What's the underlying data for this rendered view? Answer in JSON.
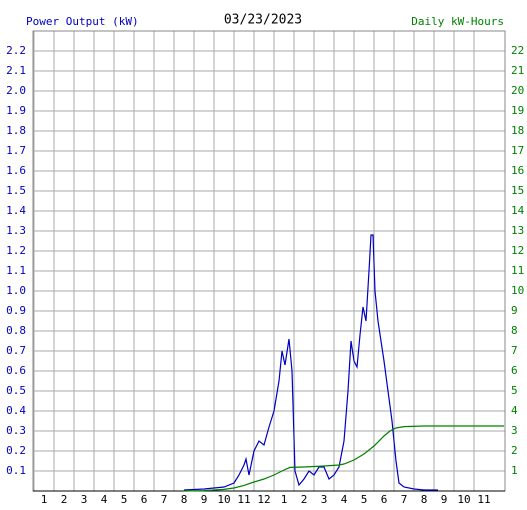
{
  "chart_data": {
    "type": "line",
    "title": "03/23/2023",
    "y_label": "Power Output (kW)",
    "y2_label": "Daily kW-Hours",
    "xlim": [
      0.45,
      24.05
    ],
    "xticks": [
      1,
      2,
      3,
      4,
      5,
      6,
      7,
      8,
      9,
      10,
      11,
      12,
      {
        "value": 13,
        "label": "1"
      },
      {
        "value": 14,
        "label": "2"
      },
      {
        "value": 15,
        "label": "3"
      },
      {
        "value": 16,
        "label": "4"
      },
      {
        "value": 17,
        "label": "5"
      },
      {
        "value": 18,
        "label": "6"
      },
      {
        "value": 19,
        "label": "7"
      },
      {
        "value": 20,
        "label": "8"
      },
      {
        "value": 21,
        "label": "9"
      },
      {
        "value": 22,
        "label": "10"
      },
      {
        "value": 23,
        "label": "11"
      }
    ],
    "ylim": [
      0,
      2.3
    ],
    "yticks": [
      0.1,
      0.2,
      0.3,
      0.4,
      0.5,
      0.6,
      0.7,
      0.8,
      0.9,
      {
        "value": 1,
        "label": "1.0"
      },
      1.1,
      1.2,
      1.3,
      1.4,
      1.5,
      1.6,
      1.7,
      1.8,
      1.9,
      {
        "value": 2,
        "label": "2.0"
      },
      2.1,
      2.2
    ],
    "y2lim": [
      0,
      23
    ],
    "y2ticks": [
      1,
      2,
      3,
      4,
      5,
      6,
      7,
      8,
      9,
      10,
      11,
      12,
      13,
      14,
      15,
      16,
      17,
      18,
      19,
      20,
      21,
      22
    ],
    "grid": true,
    "series": [
      {
        "name": "Power Output (kW)",
        "color": "#0000c0",
        "x": [
          8,
          9,
          10,
          10.5,
          10.75,
          11,
          11.1,
          11.25,
          11.5,
          11.75,
          12,
          12.25,
          12.5,
          12.75,
          12.9,
          13.05,
          13.25,
          13.4,
          13.55,
          13.75,
          14,
          14.25,
          14.5,
          14.75,
          15,
          15.25,
          15.5,
          15.75,
          16,
          16.2,
          16.35,
          16.5,
          16.65,
          16.8,
          16.95,
          17.1,
          17.25,
          17.35,
          17.45,
          17.55,
          17.7,
          17.85,
          18,
          18.2,
          18.4,
          18.6,
          18.75,
          19,
          19.5,
          20,
          20.7
        ],
        "values": [
          0.005,
          0.01,
          0.02,
          0.04,
          0.08,
          0.13,
          0.16,
          0.08,
          0.2,
          0.25,
          0.23,
          0.32,
          0.4,
          0.55,
          0.7,
          0.63,
          0.76,
          0.6,
          0.1,
          0.03,
          0.06,
          0.1,
          0.08,
          0.12,
          0.12,
          0.06,
          0.08,
          0.12,
          0.25,
          0.5,
          0.75,
          0.65,
          0.62,
          0.78,
          0.92,
          0.85,
          1.1,
          1.28,
          1.28,
          1.0,
          0.85,
          0.75,
          0.65,
          0.5,
          0.35,
          0.15,
          0.04,
          0.02,
          0.01,
          0.005,
          0.005
        ]
      },
      {
        "name": "Daily kW-Hours",
        "color": "#008000",
        "axis": "y2",
        "x": [
          8,
          9,
          10,
          10.5,
          11,
          11.5,
          12,
          12.5,
          13,
          13.3,
          14,
          15,
          15.75,
          16,
          16.5,
          17,
          17.5,
          18,
          18.3,
          18.6,
          19,
          20,
          24
        ],
        "values": [
          0,
          0.02,
          0.08,
          0.15,
          0.28,
          0.45,
          0.6,
          0.8,
          1.05,
          1.18,
          1.2,
          1.25,
          1.3,
          1.35,
          1.55,
          1.85,
          2.25,
          2.75,
          3.0,
          3.15,
          3.22,
          3.25,
          3.25
        ]
      }
    ]
  }
}
